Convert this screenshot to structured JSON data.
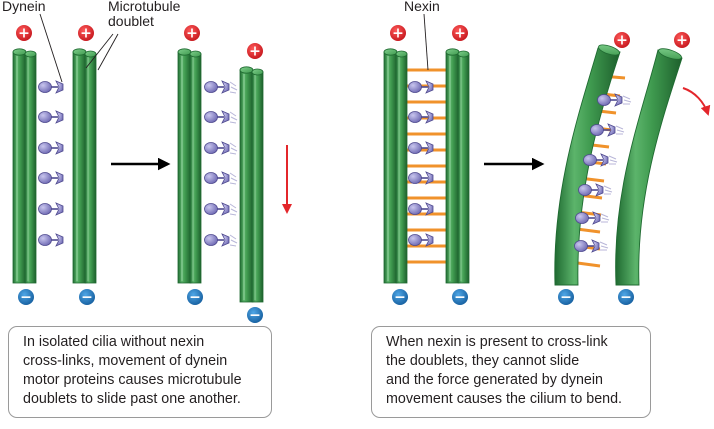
{
  "labels": {
    "dynein": "Dynein",
    "microtubule_doublet": [
      "Microtubule",
      "doublet"
    ],
    "nexin": "Nexin"
  },
  "polarity": {
    "plus": "+",
    "minus": "−"
  },
  "captions": {
    "left": [
      "In isolated cilia without nexin",
      "cross-links, movement of dynein",
      "motor proteins causes microtubule",
      "doublets to slide past one another."
    ],
    "right": [
      "When nexin is present to cross-link",
      "the doublets, they cannot slide",
      "and the force generated by dynein",
      "movement causes the cilium to bend."
    ]
  },
  "colors": {
    "tubule_light": "#6cc07a",
    "tubule_mid": "#3f9a4f",
    "tubule_dark": "#1f6a31",
    "dynein": "#8a86c8",
    "dynein_dark": "#4f4a8f",
    "nexin": "#f0922b",
    "plus_marker": "#d81f26",
    "minus_marker": "#1b75bc",
    "arrow_black": "#000000",
    "arrow_red": "#e3262b"
  }
}
